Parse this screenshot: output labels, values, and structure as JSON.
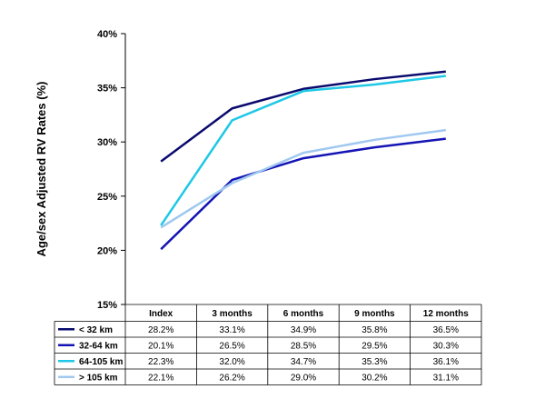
{
  "chart_data": {
    "type": "line",
    "title": "",
    "xlabel": "",
    "ylabel": "Age/sex Adjusted RV Rates (%)",
    "ylim": [
      15,
      40
    ],
    "yticks": [
      15,
      20,
      25,
      30,
      35,
      40
    ],
    "ytick_labels": [
      "15%",
      "20%",
      "25%",
      "30%",
      "35%",
      "40%"
    ],
    "categories": [
      "Index",
      "3 months",
      "6 months",
      "9 months",
      "12 months"
    ],
    "series": [
      {
        "name": "< 32 km",
        "color": "#0a0a6e",
        "values": [
          28.2,
          33.1,
          34.9,
          35.8,
          36.5
        ],
        "labels": [
          "28.2%",
          "33.1%",
          "34.9%",
          "35.8%",
          "36.5%"
        ]
      },
      {
        "name": "32-64 km",
        "color": "#1414b4",
        "values": [
          20.1,
          26.5,
          28.5,
          29.5,
          30.3
        ],
        "labels": [
          "20.1%",
          "26.5%",
          "28.5%",
          "29.5%",
          "30.3%"
        ]
      },
      {
        "name": "64-105 km",
        "color": "#1ec8e6",
        "values": [
          22.3,
          32.0,
          34.7,
          35.3,
          36.1
        ],
        "labels": [
          "22.3%",
          "32.0%",
          "34.7%",
          "35.3%",
          "36.1%"
        ]
      },
      {
        "name": "> 105 km",
        "color": "#a0c8f0",
        "values": [
          22.1,
          26.2,
          29.0,
          30.2,
          31.1
        ],
        "labels": [
          "22.1%",
          "26.2%",
          "29.0%",
          "30.2%",
          "31.1%"
        ]
      }
    ],
    "grid": false,
    "legend": "data table below chart"
  }
}
